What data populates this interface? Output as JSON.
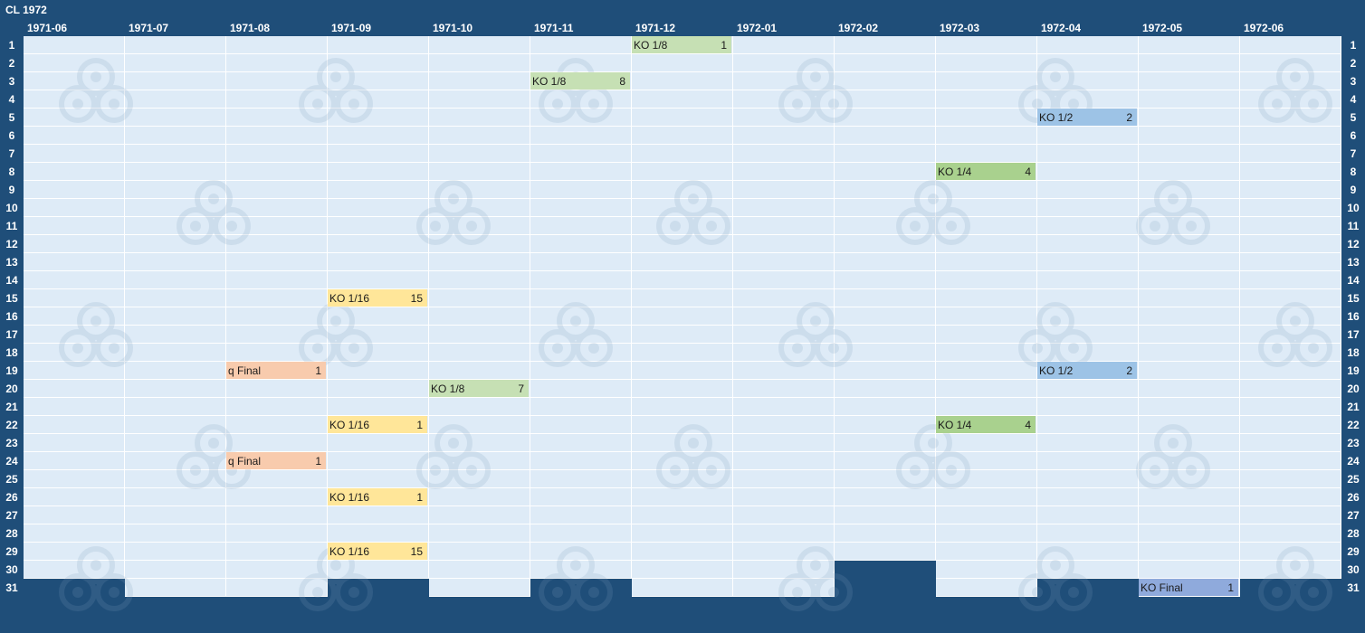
{
  "title": "CL 1972",
  "months": [
    "1971-06",
    "1971-07",
    "1971-08",
    "1971-09",
    "1971-10",
    "1971-11",
    "1971-12",
    "1972-01",
    "1972-02",
    "1972-03",
    "1972-04",
    "1972-05",
    "1972-06"
  ],
  "days": [
    "1",
    "2",
    "3",
    "4",
    "5",
    "6",
    "7",
    "8",
    "9",
    "10",
    "11",
    "12",
    "13",
    "14",
    "15",
    "16",
    "17",
    "18",
    "19",
    "20",
    "21",
    "22",
    "23",
    "24",
    "25",
    "26",
    "27",
    "28",
    "29",
    "30",
    "31"
  ],
  "days_in_month": [
    30,
    31,
    31,
    30,
    31,
    30,
    31,
    31,
    29,
    31,
    30,
    31,
    30
  ],
  "events": [
    {
      "month": 6,
      "day": 1,
      "label": "KO 1/8",
      "count": "1",
      "color": "#c6e0b4"
    },
    {
      "month": 5,
      "day": 3,
      "label": "KO 1/8",
      "count": "8",
      "color": "#c6e0b4"
    },
    {
      "month": 10,
      "day": 5,
      "label": "KO 1/2",
      "count": "2",
      "color": "#9dc3e6"
    },
    {
      "month": 9,
      "day": 8,
      "label": "KO 1/4",
      "count": "4",
      "color": "#a9d18e"
    },
    {
      "month": 3,
      "day": 15,
      "label": "KO 1/16",
      "count": "15",
      "color": "#ffe699"
    },
    {
      "month": 2,
      "day": 19,
      "label": "q Final",
      "count": "1",
      "color": "#f8cbad"
    },
    {
      "month": 10,
      "day": 19,
      "label": "KO 1/2",
      "count": "2",
      "color": "#9dc3e6"
    },
    {
      "month": 4,
      "day": 20,
      "label": "KO 1/8",
      "count": "7",
      "color": "#c6e0b4"
    },
    {
      "month": 3,
      "day": 22,
      "label": "KO 1/16",
      "count": "1",
      "color": "#ffe699"
    },
    {
      "month": 9,
      "day": 22,
      "label": "KO 1/4",
      "count": "4",
      "color": "#a9d18e"
    },
    {
      "month": 2,
      "day": 24,
      "label": "q Final",
      "count": "1",
      "color": "#f8cbad"
    },
    {
      "month": 3,
      "day": 26,
      "label": "KO 1/16",
      "count": "1",
      "color": "#ffe699"
    },
    {
      "month": 3,
      "day": 29,
      "label": "KO 1/16",
      "count": "15",
      "color": "#ffe699"
    },
    {
      "month": 11,
      "day": 31,
      "label": "KO Final",
      "count": "1",
      "color": "#8faadc"
    }
  ],
  "watermark_icon": "soccer-ball-logo-icon"
}
